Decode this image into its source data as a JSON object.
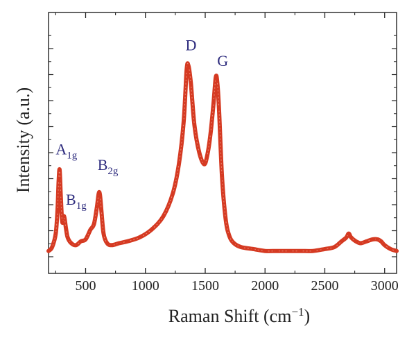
{
  "chart_data": {
    "type": "line",
    "xlabel": "Raman Shift (cm",
    "xlabel_sup": "−1",
    "xlabel_close": ")",
    "ylabel": "Intensity (a.u.)",
    "xlim": [
      190,
      3100
    ],
    "ylim": [
      0,
      1.0
    ],
    "x_ticks": [
      500,
      1000,
      1500,
      2000,
      2500,
      3000
    ],
    "x_tick_labels": [
      "500",
      "1000",
      "1500",
      "2000",
      "2500",
      "3000"
    ],
    "y_tick_labels_shown": false,
    "grid": false,
    "legend": "none",
    "series": [
      {
        "color": "#d53a22",
        "x": [
          190,
          220,
          250,
          265,
          275,
          283,
          292,
          305,
          320,
          335,
          350,
          380,
          420,
          460,
          500,
          540,
          570,
          595,
          610,
          620,
          632,
          650,
          680,
          720,
          780,
          850,
          950,
          1050,
          1150,
          1230,
          1280,
          1320,
          1345,
          1360,
          1380,
          1410,
          1450,
          1490,
          1515,
          1545,
          1570,
          1588,
          1600,
          1615,
          1640,
          1670,
          1700,
          1740,
          1800,
          1900,
          2000,
          2100,
          2200,
          2300,
          2400,
          2500,
          2580,
          2640,
          2680,
          2700,
          2720,
          2760,
          2800,
          2850,
          2900,
          2940,
          2970,
          3000,
          3050,
          3100
        ],
        "y": [
          0.03,
          0.05,
          0.12,
          0.24,
          0.4,
          0.45,
          0.32,
          0.18,
          0.21,
          0.15,
          0.1,
          0.07,
          0.06,
          0.08,
          0.09,
          0.14,
          0.17,
          0.26,
          0.33,
          0.32,
          0.24,
          0.12,
          0.07,
          0.06,
          0.07,
          0.08,
          0.1,
          0.14,
          0.21,
          0.33,
          0.48,
          0.7,
          0.97,
          0.99,
          0.9,
          0.68,
          0.54,
          0.48,
          0.52,
          0.64,
          0.8,
          0.93,
          0.91,
          0.77,
          0.42,
          0.2,
          0.11,
          0.07,
          0.05,
          0.04,
          0.03,
          0.03,
          0.03,
          0.03,
          0.03,
          0.04,
          0.05,
          0.08,
          0.1,
          0.12,
          0.1,
          0.08,
          0.07,
          0.08,
          0.09,
          0.09,
          0.08,
          0.06,
          0.04,
          0.03
        ]
      }
    ],
    "annotations": [
      {
        "base": "A",
        "sub": "1g",
        "x": 250,
        "y": 0.53
      },
      {
        "base": "B",
        "sub": "1g",
        "x": 335,
        "y": 0.27
      },
      {
        "base": "B",
        "sub": "2g",
        "x": 600,
        "y": 0.45
      },
      {
        "base": "D",
        "sub": "",
        "x": 1335,
        "y": 1.07
      },
      {
        "base": "G",
        "sub": "",
        "x": 1600,
        "y": 0.99
      }
    ],
    "annotation_color": "#2e2c7e"
  }
}
